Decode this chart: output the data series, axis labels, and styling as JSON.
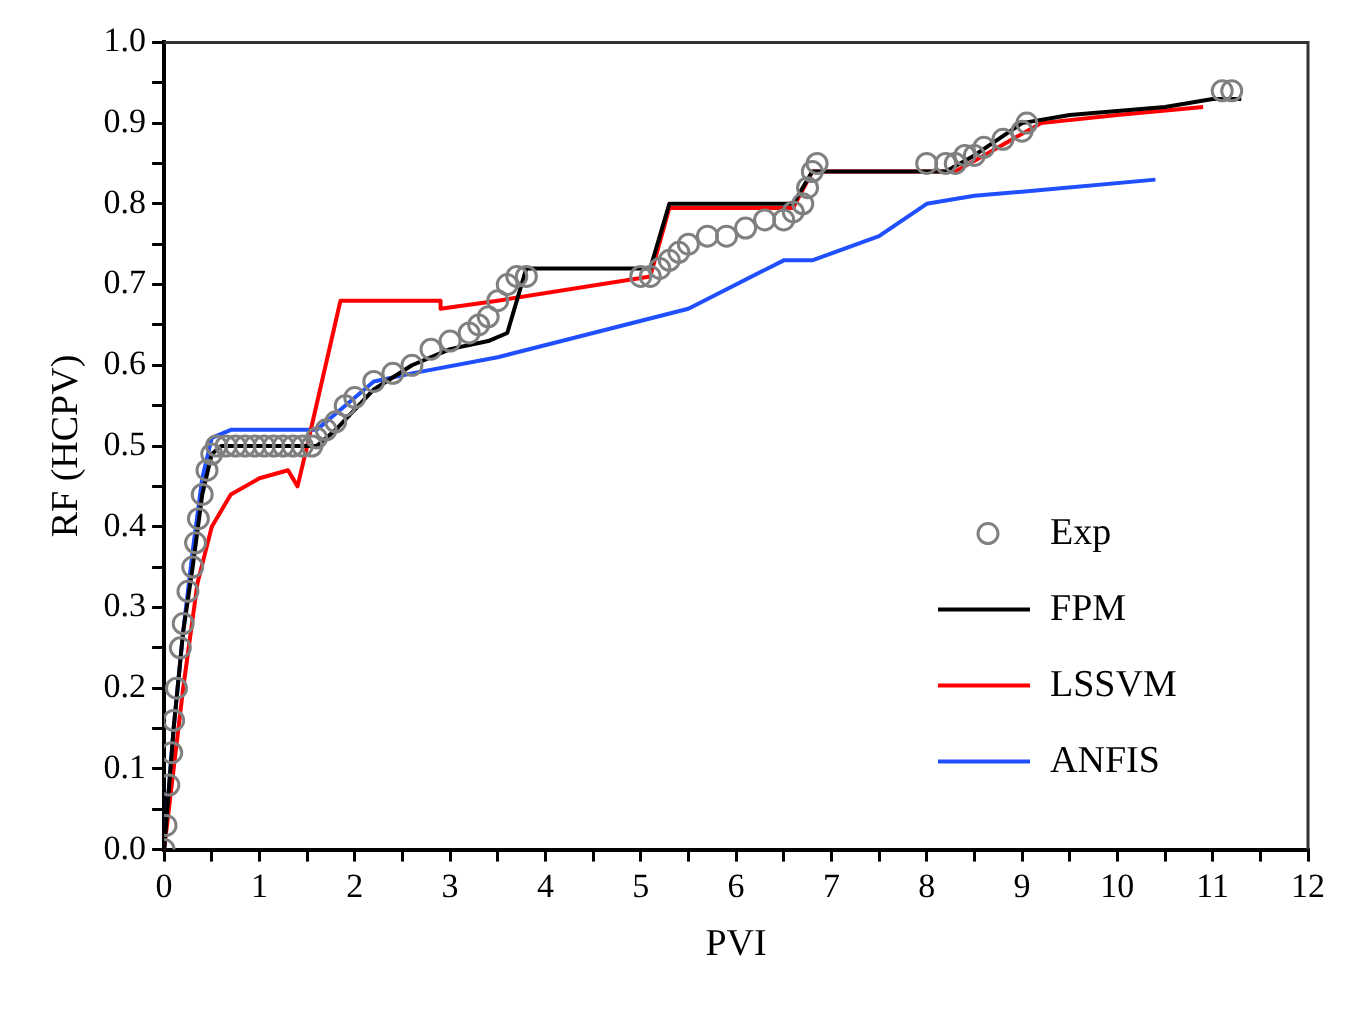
{
  "chart_data": {
    "type": "line",
    "xlabel": "PVI",
    "ylabel": "RF (HCPV)",
    "xlim": [
      0,
      12
    ],
    "ylim": [
      0,
      1
    ],
    "xticks": [
      0,
      {
        "value": 0.5,
        "label": null
      },
      1,
      {
        "value": 1.5,
        "label": null
      },
      2,
      {
        "value": 2.5,
        "label": null
      },
      3,
      {
        "value": 3.5,
        "label": null
      },
      4,
      {
        "value": 4.5,
        "label": null
      },
      5,
      {
        "value": 5.5,
        "label": null
      },
      6,
      {
        "value": 6.5,
        "label": null
      },
      7,
      {
        "value": 7.5,
        "label": null
      },
      8,
      {
        "value": 8.5,
        "label": null
      },
      9,
      {
        "value": 9.5,
        "label": null
      },
      10,
      {
        "value": 10.5,
        "label": null
      },
      11,
      {
        "value": 11.5,
        "label": null
      },
      12
    ],
    "yticks": [
      {
        "value": 0,
        "label": "0.0"
      },
      {
        "value": 0.05,
        "label": null
      },
      {
        "value": 0.1,
        "label": "0.1"
      },
      {
        "value": 0.15,
        "label": null
      },
      {
        "value": 0.2,
        "label": "0.2"
      },
      {
        "value": 0.25,
        "label": null
      },
      {
        "value": 0.3,
        "label": "0.3"
      },
      {
        "value": 0.35,
        "label": null
      },
      {
        "value": 0.4,
        "label": "0.4"
      },
      {
        "value": 0.45,
        "label": null
      },
      {
        "value": 0.5,
        "label": "0.5"
      },
      {
        "value": 0.55,
        "label": null
      },
      {
        "value": 0.6,
        "label": "0.6"
      },
      {
        "value": 0.65,
        "label": null
      },
      {
        "value": 0.7,
        "label": "0.7"
      },
      {
        "value": 0.75,
        "label": null
      },
      {
        "value": 0.8,
        "label": "0.8"
      },
      {
        "value": 0.85,
        "label": null
      },
      {
        "value": 0.9,
        "label": "0.9"
      },
      {
        "value": 0.95,
        "label": null
      },
      {
        "value": 1,
        "label": "1.0"
      }
    ],
    "grid": false,
    "legend": "bottom right",
    "series": [
      {
        "name": "Exp",
        "type": "scatter",
        "marker": "circle",
        "color": "#808080",
        "x": [
          0,
          0.02,
          0.05,
          0.08,
          0.1,
          0.13,
          0.17,
          0.2,
          0.25,
          0.3,
          0.33,
          0.36,
          0.4,
          0.45,
          0.5,
          0.55,
          0.65,
          0.75,
          0.85,
          0.95,
          1.05,
          1.15,
          1.25,
          1.35,
          1.45,
          1.55,
          1.6,
          1.7,
          1.8,
          1.9,
          2.0,
          2.2,
          2.4,
          2.6,
          2.8,
          3.0,
          3.2,
          3.3,
          3.4,
          3.5,
          3.6,
          3.7,
          3.8,
          5.0,
          5.1,
          5.2,
          5.3,
          5.4,
          5.5,
          5.7,
          5.9,
          6.1,
          6.3,
          6.5,
          6.6,
          6.7,
          6.75,
          6.8,
          6.85,
          8.0,
          8.2,
          8.3,
          8.4,
          8.5,
          8.6,
          8.8,
          9.0,
          9.05,
          11.1,
          11.2
        ],
        "values": [
          0,
          0.03,
          0.08,
          0.12,
          0.16,
          0.2,
          0.25,
          0.28,
          0.32,
          0.35,
          0.38,
          0.41,
          0.44,
          0.47,
          0.49,
          0.5,
          0.5,
          0.5,
          0.5,
          0.5,
          0.5,
          0.5,
          0.5,
          0.5,
          0.5,
          0.5,
          0.51,
          0.52,
          0.53,
          0.55,
          0.56,
          0.58,
          0.59,
          0.6,
          0.62,
          0.63,
          0.64,
          0.65,
          0.66,
          0.68,
          0.7,
          0.71,
          0.71,
          0.71,
          0.71,
          0.72,
          0.73,
          0.74,
          0.75,
          0.76,
          0.76,
          0.77,
          0.78,
          0.78,
          0.79,
          0.8,
          0.82,
          0.84,
          0.85,
          0.85,
          0.85,
          0.85,
          0.86,
          0.86,
          0.87,
          0.88,
          0.89,
          0.9,
          0.94,
          0.94
        ]
      },
      {
        "name": "FPM",
        "type": "line",
        "marker": "none",
        "color": "#000000",
        "x": [
          0,
          0.1,
          0.2,
          0.3,
          0.4,
          0.5,
          0.6,
          1.6,
          1.8,
          2.2,
          2.6,
          3.0,
          3.4,
          3.6,
          3.8,
          5.1,
          5.3,
          6.6,
          6.8,
          8.2,
          8.5,
          9.0,
          9.5,
          10.5,
          11.0,
          11.3
        ],
        "values": [
          0,
          0.15,
          0.27,
          0.35,
          0.44,
          0.49,
          0.5,
          0.5,
          0.52,
          0.57,
          0.6,
          0.62,
          0.63,
          0.64,
          0.72,
          0.72,
          0.8,
          0.8,
          0.84,
          0.84,
          0.86,
          0.9,
          0.91,
          0.92,
          0.93,
          0.93
        ]
      },
      {
        "name": "LSSVM",
        "type": "line",
        "marker": "none",
        "color": "#ff0000",
        "x": [
          0,
          0.2,
          0.35,
          0.5,
          0.7,
          1.0,
          1.3,
          1.4,
          1.5,
          1.85,
          2.9,
          2.9,
          3.5,
          5.1,
          5.3,
          6.6,
          6.8,
          8.3,
          8.6,
          9.2,
          10.0,
          10.9
        ],
        "values": [
          0,
          0.2,
          0.33,
          0.4,
          0.44,
          0.46,
          0.47,
          0.45,
          0.5,
          0.68,
          0.68,
          0.67,
          0.68,
          0.71,
          0.795,
          0.795,
          0.84,
          0.84,
          0.86,
          0.9,
          0.91,
          0.92
        ]
      },
      {
        "name": "ANFIS",
        "type": "line",
        "marker": "none",
        "color": "#1f4fff",
        "x": [
          0,
          0.1,
          0.2,
          0.3,
          0.4,
          0.5,
          0.7,
          1.6,
          1.8,
          2.2,
          2.6,
          3.5,
          4.5,
          5.5,
          6.5,
          6.8,
          7.5,
          8.0,
          8.5,
          9.0,
          10.4
        ],
        "values": [
          0,
          0.15,
          0.27,
          0.37,
          0.46,
          0.51,
          0.52,
          0.52,
          0.54,
          0.58,
          0.59,
          0.61,
          0.64,
          0.67,
          0.73,
          0.73,
          0.76,
          0.8,
          0.81,
          0.815,
          0.83
        ]
      }
    ]
  }
}
